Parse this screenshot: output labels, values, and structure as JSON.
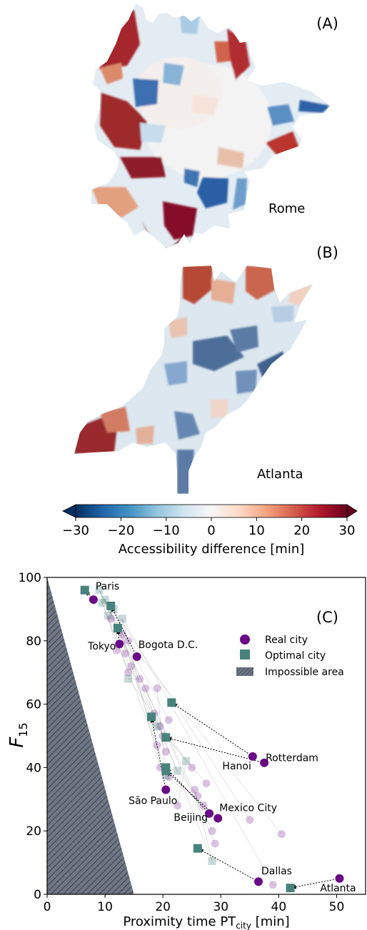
{
  "panels": {
    "a": {
      "label": "(A)",
      "city": "Rome"
    },
    "b": {
      "label": "(B)",
      "city": "Atlanta"
    },
    "c": {
      "label": "(C)"
    }
  },
  "colorbar": {
    "label": "Accessibility difference [min]",
    "ticks": [
      "−30",
      "−20",
      "−10",
      "0",
      "10",
      "20",
      "30"
    ],
    "range": [
      -30,
      30
    ],
    "colormap": "RdBu_r",
    "extend": "both"
  },
  "colors": {
    "real": "#6a0a86",
    "optimal": "#48827c",
    "impossible": "#6f7785",
    "arrow": "#000000"
  },
  "chart_data": {
    "type": "scatter",
    "xlabel": "Proximity time PT",
    "xlabel_sub": "city",
    "xlabel_unit": "[min]",
    "ylabel": "F",
    "ylabel_sub": "15",
    "xlim": [
      0,
      55
    ],
    "ylim": [
      0,
      100
    ],
    "xticks": [
      0,
      10,
      20,
      30,
      40,
      50
    ],
    "yticks": [
      0,
      20,
      40,
      60,
      80,
      100
    ],
    "legend": {
      "placement": "right",
      "entries": [
        "Real city",
        "Optimal city",
        "Impossible area"
      ]
    },
    "impossible_area": [
      [
        0,
        100
      ],
      [
        15,
        0
      ],
      [
        0,
        0
      ]
    ],
    "highlighted": [
      {
        "name": "Paris",
        "real": [
          8,
          93
        ],
        "optimal": [
          6.5,
          96
        ]
      },
      {
        "name": "Tokyo",
        "real": [
          12.5,
          79
        ],
        "optimal": [
          12.2,
          84
        ]
      },
      {
        "name": "Bogota D.C.",
        "real": [
          15.5,
          75
        ],
        "optimal": [
          11,
          91
        ]
      },
      {
        "name": "Hanoi",
        "real": [
          35.5,
          43.5
        ],
        "optimal": [
          21.5,
          60.5
        ]
      },
      {
        "name": "Rotterdam",
        "real": [
          37.5,
          41.5
        ],
        "optimal": [
          20.5,
          49.5
        ]
      },
      {
        "name": "São Paulo",
        "real": [
          20.5,
          33
        ],
        "optimal": [
          18,
          56
        ]
      },
      {
        "name": "Beijing",
        "real": [
          28,
          25.5
        ],
        "optimal": [
          20.5,
          40
        ]
      },
      {
        "name": "Mexico City",
        "real": [
          29.5,
          24
        ],
        "optimal": [
          20.5,
          39
        ]
      },
      {
        "name": "Dallas",
        "real": [
          36.5,
          4
        ],
        "optimal": [
          26,
          14.5
        ]
      },
      {
        "name": "Atlanta",
        "real": [
          50.5,
          5
        ],
        "optimal": [
          42,
          2
        ]
      }
    ],
    "other_real": [
      [
        13,
        82
      ],
      [
        11,
        87
      ],
      [
        14,
        80
      ],
      [
        12,
        77
      ],
      [
        13.5,
        76
      ],
      [
        14,
        70
      ],
      [
        16,
        68
      ],
      [
        17,
        65
      ],
      [
        14.5,
        72
      ],
      [
        19,
        65
      ],
      [
        18.5,
        57
      ],
      [
        19.5,
        53
      ],
      [
        21,
        55
      ],
      [
        20,
        50
      ],
      [
        19,
        47
      ],
      [
        20.5,
        45
      ],
      [
        19.5,
        40
      ],
      [
        21,
        37
      ],
      [
        25,
        40
      ],
      [
        27.5,
        35
      ],
      [
        26,
        31
      ],
      [
        27,
        28
      ],
      [
        25.5,
        33
      ],
      [
        22.5,
        28
      ],
      [
        28.5,
        20
      ],
      [
        29,
        16
      ],
      [
        35,
        23.5
      ],
      [
        40.5,
        19
      ],
      [
        39,
        3
      ]
    ],
    "other_optimal": [
      [
        9,
        96
      ],
      [
        10,
        93
      ],
      [
        11.5,
        90
      ],
      [
        10.5,
        88
      ],
      [
        13,
        87
      ],
      [
        9.5,
        92
      ],
      [
        14,
        68
      ],
      [
        19,
        53
      ],
      [
        22.5,
        39
      ],
      [
        20.5,
        37.5
      ],
      [
        28.5,
        10.5
      ],
      [
        24,
        42
      ]
    ]
  }
}
